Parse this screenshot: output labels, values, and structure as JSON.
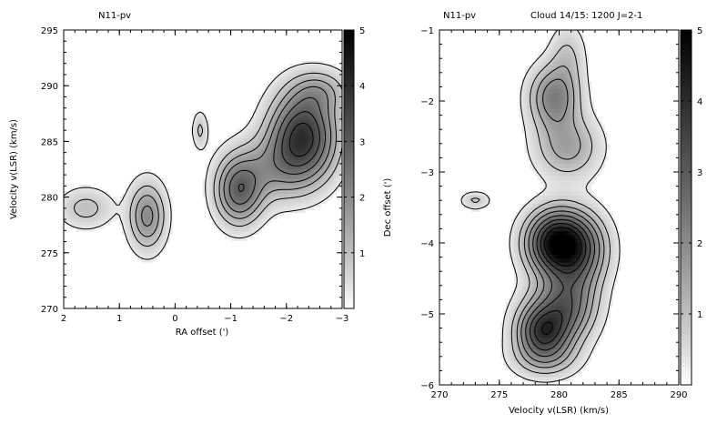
{
  "chart_data": [
    {
      "type": "contour",
      "title": "N11-pv",
      "subtitle": "",
      "xlabel": "RA offset (')",
      "ylabel": "Velocity v(LSR) (km/s)",
      "xlim": [
        2,
        -3
      ],
      "ylim": [
        270,
        295
      ],
      "xticks": [
        2,
        1,
        0,
        -1,
        -2,
        -3
      ],
      "xtick_labels": [
        "2",
        "1",
        "0",
        "−1",
        "−2",
        "−3"
      ],
      "yticks": [
        270,
        275,
        280,
        285,
        290,
        295
      ],
      "ytick_labels": [
        "270",
        "275",
        "280",
        "285",
        "290",
        "295"
      ],
      "colorbar": {
        "range": [
          0,
          5
        ],
        "ticks": [
          1,
          2,
          3,
          4,
          5
        ],
        "tick_labels": [
          "1",
          "2",
          "3",
          "4",
          "5"
        ]
      },
      "components": [
        {
          "x": 1.6,
          "y": 279.0,
          "sx": 0.32,
          "sy": 1.2,
          "amp": 1.0,
          "rot": 0
        },
        {
          "x": 0.5,
          "y": 278.3,
          "sx": 0.22,
          "sy": 2.0,
          "amp": 2.0,
          "rot": 0
        },
        {
          "x": -0.45,
          "y": 286.0,
          "sx": 0.09,
          "sy": 1.1,
          "amp": 0.9,
          "rot": 0
        },
        {
          "x": -1.15,
          "y": 280.5,
          "sx": 0.28,
          "sy": 2.0,
          "amp": 2.6,
          "rot": 0
        },
        {
          "x": -2.3,
          "y": 285.5,
          "sx": 0.4,
          "sy": 2.6,
          "amp": 3.8,
          "rot": -0.3
        },
        {
          "x": -1.75,
          "y": 282.5,
          "sx": 0.5,
          "sy": 2.0,
          "amp": 1.3,
          "rot": -0.4
        },
        {
          "x": -2.6,
          "y": 289.5,
          "sx": 0.35,
          "sy": 1.3,
          "amp": 1.1,
          "rot": 0
        }
      ]
    },
    {
      "type": "contour",
      "title": "N11-pv",
      "subtitle": "Cloud 14/15: 1200 J=2-1",
      "xlabel": "Velocity v(LSR) (km/s)",
      "ylabel": "Dec offset (')",
      "xlim": [
        270,
        290
      ],
      "ylim": [
        -6,
        -1
      ],
      "xticks": [
        270,
        275,
        280,
        285,
        290
      ],
      "xtick_labels": [
        "270",
        "275",
        "280",
        "285",
        "290"
      ],
      "yticks": [
        -6,
        -5,
        -4,
        -3,
        -2,
        -1
      ],
      "ytick_labels": [
        "−6",
        "−5",
        "−4",
        "−3",
        "−2",
        "−1"
      ],
      "colorbar": {
        "range": [
          0,
          5
        ],
        "ticks": [
          1,
          2,
          3,
          4,
          5
        ],
        "tick_labels": [
          "1",
          "2",
          "3",
          "4",
          "5"
        ]
      },
      "components": [
        {
          "x": 279.6,
          "y": -1.95,
          "sx": 1.4,
          "sy": 0.3,
          "amp": 2.2,
          "rot": 0
        },
        {
          "x": 280.7,
          "y": -2.65,
          "sx": 1.8,
          "sy": 0.3,
          "amp": 1.5,
          "rot": 0
        },
        {
          "x": 280.7,
          "y": -1.35,
          "sx": 1.0,
          "sy": 0.3,
          "amp": 0.8,
          "rot": 0
        },
        {
          "x": 279.9,
          "y": -4.0,
          "sx": 1.7,
          "sy": 0.3,
          "amp": 5.0,
          "rot": 0
        },
        {
          "x": 282.2,
          "y": -4.1,
          "sx": 1.5,
          "sy": 0.35,
          "amp": 1.5,
          "rot": 0
        },
        {
          "x": 281.0,
          "y": -4.7,
          "sx": 1.5,
          "sy": 0.35,
          "amp": 1.5,
          "rot": 0
        },
        {
          "x": 279.7,
          "y": -5.0,
          "sx": 1.9,
          "sy": 0.3,
          "amp": 2.0,
          "rot": 0
        },
        {
          "x": 278.6,
          "y": -5.25,
          "sx": 1.4,
          "sy": 0.22,
          "amp": 2.6,
          "rot": 0
        },
        {
          "x": 278.8,
          "y": -5.6,
          "sx": 1.8,
          "sy": 0.2,
          "amp": 1.4,
          "rot": 0
        },
        {
          "x": 273.0,
          "y": -3.4,
          "sx": 0.8,
          "sy": 0.08,
          "amp": 0.9,
          "rot": 0
        }
      ]
    }
  ]
}
